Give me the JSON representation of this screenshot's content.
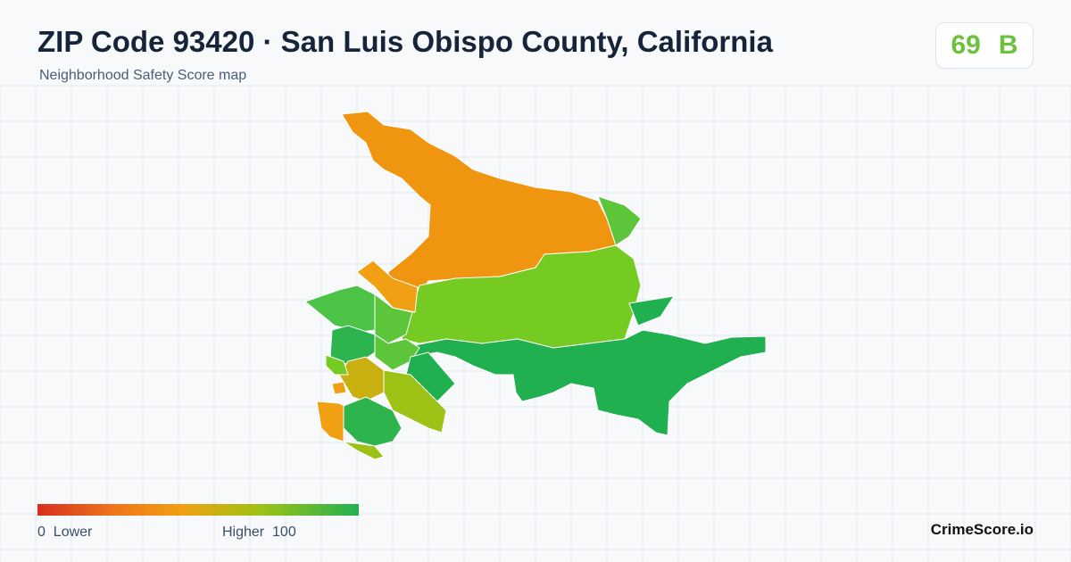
{
  "header": {
    "title": "ZIP Code 93420 · San Luis Obispo County, California",
    "subtitle": "Neighborhood Safety Score map"
  },
  "score": {
    "value": 69,
    "grade": "B"
  },
  "legend": {
    "min": 0,
    "min_label": "Lower",
    "max_label": "Higher",
    "max": 100
  },
  "brand": "CrimeScore.io"
}
